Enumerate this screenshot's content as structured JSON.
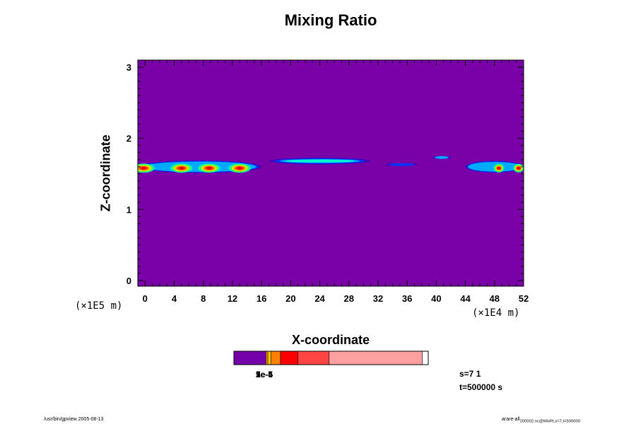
{
  "colors": {
    "background_field": "#7a00a8",
    "scale": [
      "#4b00b4",
      "#0033ff",
      "#00aaff",
      "#00ffcc",
      "#33ff33",
      "#ccff00",
      "#ffaa00",
      "#ff5500",
      "#ff2200",
      "#ee0000"
    ]
  },
  "chart_data": {
    "type": "heatmap",
    "title": "Mixing Ratio",
    "xlabel": "X-coordinate",
    "ylabel": "Z-coordinate",
    "x_unit": "(×1E4 m)",
    "z_unit": "(×1E5 m)",
    "xlim": [
      -1,
      52
    ],
    "ylim": [
      -0.08,
      3.1
    ],
    "x_ticks": [
      0,
      4,
      8,
      12,
      16,
      20,
      24,
      28,
      32,
      36,
      40,
      44,
      48,
      52
    ],
    "y_ticks": [
      0,
      1,
      2,
      3
    ],
    "features": [
      {
        "x_start": -1,
        "x_end": 16,
        "z_center": 1.6,
        "thickness": 0.18,
        "peak_level": 9,
        "peaks_x": [
          -0.2,
          5,
          8.8,
          13
        ]
      },
      {
        "x_start": 17,
        "x_end": 31,
        "z_center": 1.68,
        "thickness": 0.1,
        "peak_level": 3
      },
      {
        "x_start": 33,
        "x_end": 37.5,
        "z_center": 1.63,
        "thickness": 0.04,
        "peak_level": 1
      },
      {
        "x_start": 39.5,
        "x_end": 42,
        "z_center": 1.73,
        "thickness": 0.04,
        "peak_level": 2
      },
      {
        "x_start": 44,
        "x_end": 52,
        "z_center": 1.6,
        "thickness": 0.17,
        "peak_level": 9,
        "peaks_x": [
          48.6,
          51.3
        ]
      }
    ],
    "colorbar": {
      "colors": [
        "#7300a8",
        "#ff9900",
        "#ffcc00",
        "#ff8000",
        "#ff0000",
        "#ff4444",
        "#ffa0a0"
      ],
      "fractions": [
        0.165,
        0.01,
        0.015,
        0.05,
        0.09,
        0.16,
        0.48
      ],
      "labels": [
        "1e-5",
        "2e-5",
        "5e-5",
        "1e-4"
      ]
    }
  },
  "info": {
    "s_line": "s=7 1",
    "t_line": "t=500000 s"
  },
  "footer": {
    "left": "/usr/bin/gpview 2005-08-13",
    "right": "arare-all_{sub}",
    "right_sub": "200002.nc@MixRt,s=7,t=500000"
  }
}
